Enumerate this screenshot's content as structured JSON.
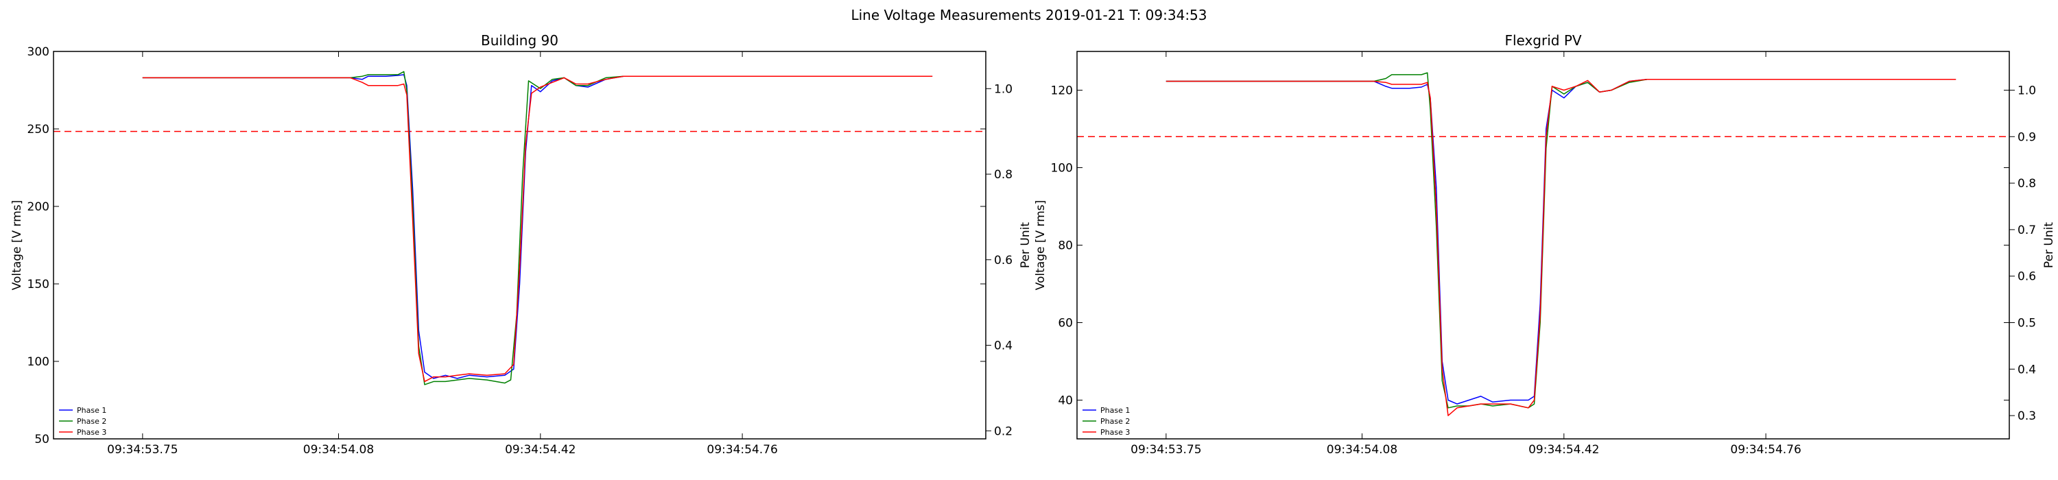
{
  "figure_title": "Line Voltage Measurements 2019-01-21 T: 09:34:53",
  "chart_data": [
    {
      "type": "line",
      "title": "Building 90",
      "ylabel": "Voltage [V rms]",
      "y2label": "Per Unit",
      "xlabel": "",
      "ylim": [
        50,
        300
      ],
      "yticks": [
        50,
        100,
        150,
        200,
        250,
        300
      ],
      "y2lim": [
        0.1812,
        1.087
      ],
      "y2ticks": [
        0.2,
        0.4,
        0.6,
        0.8,
        1.0
      ],
      "x_tick_labels": [
        "09:34:53.75",
        "09:34:54.08",
        "09:34:54.42",
        "09:34:54.76"
      ],
      "x_tick_seconds": [
        53.75,
        54.08,
        54.42,
        54.76
      ],
      "xlim_seconds": [
        53.6,
        55.17
      ],
      "x_units": "seconds after 09:34",
      "grid": false,
      "legend_position": "lower-left",
      "threshold": {
        "value": 0.9,
        "axis": "per_unit",
        "color": "#ff0000",
        "style": "dashed"
      },
      "series": [
        {
          "name": "Phase 1",
          "color": "#0000ff",
          "points": [
            [
              53.75,
              283
            ],
            [
              54.1,
              283
            ],
            [
              54.12,
              282
            ],
            [
              54.13,
              284
            ],
            [
              54.16,
              284
            ],
            [
              54.18,
              284.5
            ],
            [
              54.19,
              285
            ],
            [
              54.195,
              278
            ],
            [
              54.205,
              210
            ],
            [
              54.215,
              120
            ],
            [
              54.225,
              93
            ],
            [
              54.24,
              89
            ],
            [
              54.26,
              91
            ],
            [
              54.28,
              89
            ],
            [
              54.3,
              91
            ],
            [
              54.33,
              90
            ],
            [
              54.36,
              91
            ],
            [
              54.375,
              95
            ],
            [
              54.385,
              150
            ],
            [
              54.395,
              235
            ],
            [
              54.405,
              278
            ],
            [
              54.42,
              274
            ],
            [
              54.44,
              281
            ],
            [
              54.46,
              283
            ],
            [
              54.48,
              278
            ],
            [
              54.5,
              277
            ],
            [
              54.53,
              282
            ],
            [
              54.56,
              284
            ],
            [
              54.6,
              284
            ],
            [
              55.08,
              284
            ]
          ]
        },
        {
          "name": "Phase 2",
          "color": "#008000",
          "points": [
            [
              53.75,
              283
            ],
            [
              54.1,
              283
            ],
            [
              54.12,
              284
            ],
            [
              54.13,
              285
            ],
            [
              54.16,
              285
            ],
            [
              54.18,
              285
            ],
            [
              54.19,
              287
            ],
            [
              54.195,
              275
            ],
            [
              54.205,
              200
            ],
            [
              54.215,
              110
            ],
            [
              54.225,
              85
            ],
            [
              54.24,
              87
            ],
            [
              54.26,
              87
            ],
            [
              54.28,
              88
            ],
            [
              54.3,
              89
            ],
            [
              54.33,
              88
            ],
            [
              54.36,
              86
            ],
            [
              54.37,
              88
            ],
            [
              54.38,
              130
            ],
            [
              54.39,
              220
            ],
            [
              54.4,
              281
            ],
            [
              54.42,
              276
            ],
            [
              54.44,
              282
            ],
            [
              54.46,
              283
            ],
            [
              54.48,
              278
            ],
            [
              54.5,
              278
            ],
            [
              54.53,
              283
            ],
            [
              54.56,
              284
            ],
            [
              54.6,
              284
            ],
            [
              55.08,
              284
            ]
          ]
        },
        {
          "name": "Phase 3",
          "color": "#ff0000",
          "points": [
            [
              53.75,
              283
            ],
            [
              54.1,
              283
            ],
            [
              54.12,
              280
            ],
            [
              54.13,
              278
            ],
            [
              54.16,
              278
            ],
            [
              54.18,
              278
            ],
            [
              54.19,
              279
            ],
            [
              54.195,
              272
            ],
            [
              54.205,
              190
            ],
            [
              54.215,
              105
            ],
            [
              54.225,
              87
            ],
            [
              54.24,
              90
            ],
            [
              54.26,
              90
            ],
            [
              54.28,
              91
            ],
            [
              54.3,
              92
            ],
            [
              54.33,
              91
            ],
            [
              54.36,
              92
            ],
            [
              54.375,
              98
            ],
            [
              54.385,
              160
            ],
            [
              54.395,
              240
            ],
            [
              54.405,
              273
            ],
            [
              54.42,
              277
            ],
            [
              54.44,
              280
            ],
            [
              54.46,
              283
            ],
            [
              54.48,
              279
            ],
            [
              54.5,
              279
            ],
            [
              54.53,
              282
            ],
            [
              54.56,
              284
            ],
            [
              54.6,
              284
            ],
            [
              55.08,
              284
            ]
          ]
        }
      ]
    },
    {
      "type": "line",
      "title": "Flexgrid PV",
      "ylabel": "Voltage [V rms]",
      "y2label": "Per Unit",
      "xlabel": "",
      "ylim": [
        30,
        130
      ],
      "yticks": [
        40,
        60,
        80,
        100,
        120
      ],
      "y2lim": [
        0.25,
        1.0833
      ],
      "y2ticks": [
        0.3,
        0.4,
        0.5,
        0.6,
        0.7,
        0.8,
        0.9,
        1.0
      ],
      "x_tick_labels": [
        "09:34:53.75",
        "09:34:54.08",
        "09:34:54.42",
        "09:34:54.76"
      ],
      "x_tick_seconds": [
        53.75,
        54.08,
        54.42,
        54.76
      ],
      "xlim_seconds": [
        53.6,
        55.17
      ],
      "x_units": "seconds after 09:34",
      "grid": false,
      "legend_position": "lower-left",
      "threshold": {
        "value": 0.9,
        "axis": "per_unit",
        "color": "#ff0000",
        "style": "dashed"
      },
      "series": [
        {
          "name": "Phase 1",
          "color": "#0000ff",
          "points": [
            [
              53.75,
              122.3
            ],
            [
              54.1,
              122.3
            ],
            [
              54.12,
              121
            ],
            [
              54.13,
              120.5
            ],
            [
              54.16,
              120.5
            ],
            [
              54.18,
              120.8
            ],
            [
              54.19,
              121.5
            ],
            [
              54.195,
              118
            ],
            [
              54.205,
              95
            ],
            [
              54.215,
              50
            ],
            [
              54.225,
              40
            ],
            [
              54.24,
              39
            ],
            [
              54.26,
              40
            ],
            [
              54.28,
              41
            ],
            [
              54.3,
              39.5
            ],
            [
              54.33,
              40
            ],
            [
              54.36,
              40
            ],
            [
              54.37,
              41
            ],
            [
              54.38,
              65
            ],
            [
              54.39,
              110
            ],
            [
              54.4,
              120
            ],
            [
              54.42,
              118
            ],
            [
              54.44,
              121
            ],
            [
              54.46,
              122
            ],
            [
              54.48,
              119.5
            ],
            [
              54.5,
              120
            ],
            [
              54.53,
              122.3
            ],
            [
              54.56,
              122.8
            ],
            [
              54.6,
              122.8
            ],
            [
              55.08,
              122.8
            ]
          ]
        },
        {
          "name": "Phase 2",
          "color": "#008000",
          "points": [
            [
              53.75,
              122.3
            ],
            [
              54.1,
              122.3
            ],
            [
              54.12,
              123
            ],
            [
              54.13,
              124
            ],
            [
              54.16,
              124
            ],
            [
              54.18,
              124
            ],
            [
              54.19,
              124.5
            ],
            [
              54.195,
              115
            ],
            [
              54.205,
              85
            ],
            [
              54.215,
              45
            ],
            [
              54.225,
              38
            ],
            [
              54.24,
              38.5
            ],
            [
              54.26,
              38.5
            ],
            [
              54.28,
              39
            ],
            [
              54.3,
              38.5
            ],
            [
              54.33,
              39
            ],
            [
              54.36,
              38
            ],
            [
              54.37,
              39
            ],
            [
              54.38,
              60
            ],
            [
              54.39,
              105
            ],
            [
              54.4,
              121
            ],
            [
              54.42,
              119
            ],
            [
              54.44,
              121
            ],
            [
              54.46,
              122
            ],
            [
              54.48,
              119.5
            ],
            [
              54.5,
              120
            ],
            [
              54.53,
              122
            ],
            [
              54.56,
              122.8
            ],
            [
              54.6,
              122.8
            ],
            [
              55.08,
              122.8
            ]
          ]
        },
        {
          "name": "Phase 3",
          "color": "#ff0000",
          "points": [
            [
              53.75,
              122.3
            ],
            [
              54.1,
              122.3
            ],
            [
              54.12,
              122
            ],
            [
              54.13,
              121.5
            ],
            [
              54.16,
              121.5
            ],
            [
              54.18,
              121.5
            ],
            [
              54.19,
              122
            ],
            [
              54.195,
              118
            ],
            [
              54.205,
              90
            ],
            [
              54.215,
              48
            ],
            [
              54.225,
              36
            ],
            [
              54.24,
              38
            ],
            [
              54.26,
              38.5
            ],
            [
              54.28,
              39
            ],
            [
              54.3,
              39
            ],
            [
              54.33,
              39
            ],
            [
              54.36,
              38
            ],
            [
              54.37,
              40
            ],
            [
              54.38,
              62
            ],
            [
              54.39,
              108
            ],
            [
              54.4,
              121
            ],
            [
              54.42,
              120
            ],
            [
              54.44,
              121
            ],
            [
              54.46,
              122.5
            ],
            [
              54.48,
              119.5
            ],
            [
              54.5,
              120
            ],
            [
              54.53,
              122.3
            ],
            [
              54.56,
              122.8
            ],
            [
              54.6,
              122.8
            ],
            [
              55.08,
              122.8
            ]
          ]
        }
      ]
    }
  ]
}
